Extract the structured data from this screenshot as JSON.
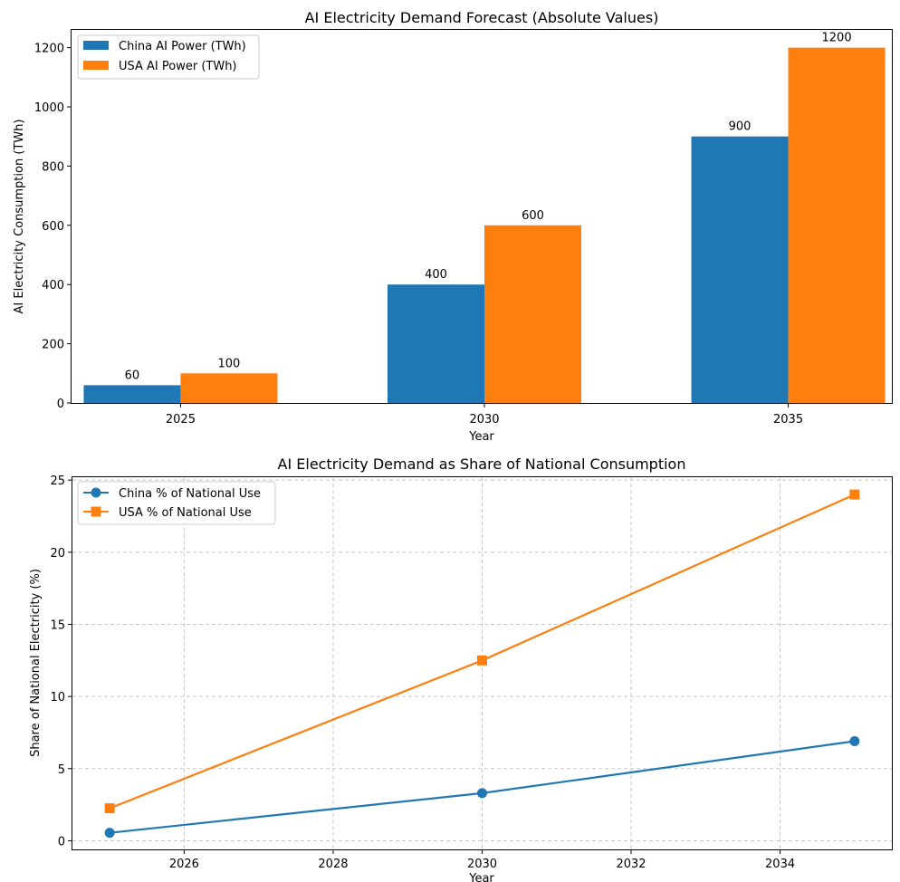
{
  "chart_data": [
    {
      "type": "bar",
      "title": "AI Electricity Demand Forecast (Absolute Values)",
      "xlabel": "Year",
      "ylabel": "AI Electricity Consumption (TWh)",
      "categories": [
        "2025",
        "2030",
        "2035"
      ],
      "series": [
        {
          "name": "China AI Power (TWh)",
          "values": [
            60,
            400,
            900
          ],
          "color": "#1f77b4"
        },
        {
          "name": "USA AI Power (TWh)",
          "values": [
            100,
            600,
            1200
          ],
          "color": "#ff7f0e"
        }
      ],
      "ylim": [
        0,
        1260
      ],
      "yticks": [
        0,
        200,
        400,
        600,
        800,
        1000,
        1200
      ],
      "grid": false,
      "legend": "top-left"
    },
    {
      "type": "line",
      "title": "AI Electricity Demand as Share of National Consumption",
      "xlabel": "Year",
      "ylabel": "Share of National Electricity (%)",
      "x": [
        2025,
        2030,
        2035
      ],
      "series": [
        {
          "name": "China % of National Use",
          "values": [
            0.55,
            3.3,
            6.9
          ],
          "color": "#1f77b4",
          "marker": "circle"
        },
        {
          "name": "USA % of National Use",
          "values": [
            2.25,
            12.5,
            24.0
          ],
          "color": "#ff7f0e",
          "marker": "square"
        }
      ],
      "xlim": [
        2024.5,
        2035.5
      ],
      "ylim": [
        -0.6,
        25.2
      ],
      "xticks": [
        2026,
        2028,
        2030,
        2032,
        2034
      ],
      "yticks": [
        0,
        5,
        10,
        15,
        20,
        25
      ],
      "grid": true,
      "legend": "top-left"
    }
  ]
}
